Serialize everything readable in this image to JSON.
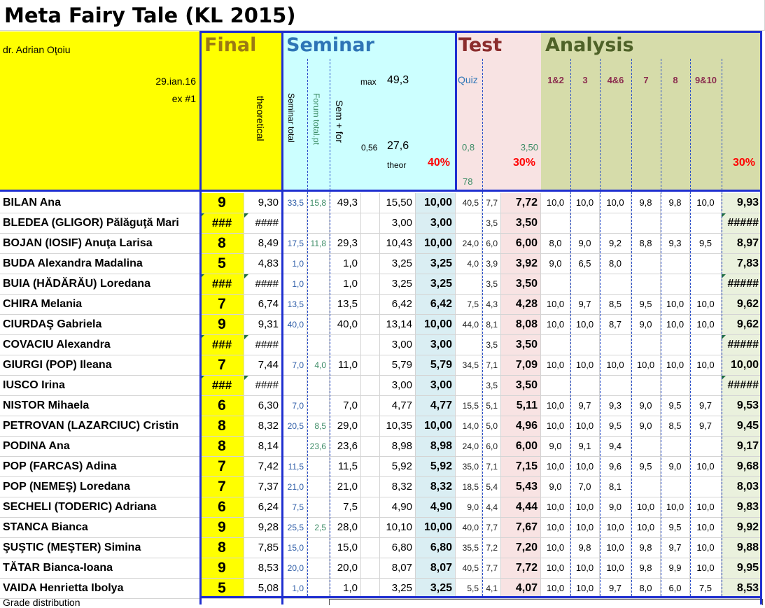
{
  "title": "Meta Fairy Tale (KL 2015)",
  "header": {
    "author": "dr. Adrian Oţoiu",
    "date": "29.ian.16",
    "exercise": "ex #1",
    "final": "Final",
    "seminar": "Seminar",
    "test": "Test",
    "analysis": "Analysis",
    "theoretical": "theoretical",
    "seminar_total": "Seminar total",
    "forum_total": "Forum total.pt",
    "sem_for": "Sem + for",
    "max_label": "max",
    "max_value": "49,3",
    "ratio": "0,56",
    "theor_value": "27,6",
    "theor_label": "theor",
    "seminar_pct": "40%",
    "quiz": "Quiz",
    "quiz_min": "0,8",
    "quiz_max": "3,50",
    "quiz_n": "78",
    "test_pct": "30%",
    "analysis_cols": [
      "1&2",
      "3",
      "4&6",
      "7",
      "8",
      "9&10"
    ],
    "analysis_pct": "30%"
  },
  "rows": [
    {
      "name": "BILAN Ana",
      "grade": "9",
      "theor": "9,30",
      "sem": "33,5",
      "forum": "15,8",
      "semfor": "49,3",
      "scaled": "15,50",
      "sem_final": "10,00",
      "q1": "40,5",
      "q2": "7,7",
      "test": "7,72",
      "a": [
        "10,0",
        "10,0",
        "10,0",
        "9,8",
        "9,8",
        "10,0"
      ],
      "analysis": "9,93"
    },
    {
      "name": "BLEDEA (GLIGOR) Pălăguţă Mari",
      "grade": "###",
      "theor": "####",
      "sem": "",
      "forum": "",
      "semfor": "",
      "scaled": "3,00",
      "sem_final": "3,00",
      "q1": "",
      "q2": "3,5",
      "test": "3,50",
      "a": [
        "",
        "",
        "",
        "",
        "",
        ""
      ],
      "analysis": "#####"
    },
    {
      "name": "BOJAN (IOSIF) Anuţa Larisa",
      "grade": "8",
      "theor": "8,49",
      "sem": "17,5",
      "forum": "11,8",
      "semfor": "29,3",
      "scaled": "10,43",
      "sem_final": "10,00",
      "q1": "24,0",
      "q2": "6,0",
      "test": "6,00",
      "a": [
        "8,0",
        "9,0",
        "9,2",
        "8,8",
        "9,3",
        "9,5"
      ],
      "analysis": "8,97"
    },
    {
      "name": "BUDA Alexandra Madalina",
      "grade": "5",
      "theor": "4,83",
      "sem": "1,0",
      "forum": "",
      "semfor": "1,0",
      "scaled": "3,25",
      "sem_final": "3,25",
      "q1": "4,0",
      "q2": "3,9",
      "test": "3,92",
      "a": [
        "9,0",
        "6,5",
        "8,0",
        "",
        "",
        ""
      ],
      "analysis": "7,83"
    },
    {
      "name": "BUIA (HĂDĂRĂU) Loredana",
      "grade": "###",
      "theor": "####",
      "sem": "1,0",
      "forum": "",
      "semfor": "1,0",
      "scaled": "3,25",
      "sem_final": "3,25",
      "q1": "",
      "q2": "3,5",
      "test": "3,50",
      "a": [
        "",
        "",
        "",
        "",
        "",
        ""
      ],
      "analysis": "#####"
    },
    {
      "name": "CHIRA Melania",
      "grade": "7",
      "theor": "6,74",
      "sem": "13,5",
      "forum": "",
      "semfor": "13,5",
      "scaled": "6,42",
      "sem_final": "6,42",
      "q1": "7,5",
      "q2": "4,3",
      "test": "4,28",
      "a": [
        "10,0",
        "9,7",
        "8,5",
        "9,5",
        "10,0",
        "10,0"
      ],
      "analysis": "9,62"
    },
    {
      "name": "CIURDAŞ Gabriela",
      "grade": "9",
      "theor": "9,31",
      "sem": "40,0",
      "forum": "",
      "semfor": "40,0",
      "scaled": "13,14",
      "sem_final": "10,00",
      "q1": "44,0",
      "q2": "8,1",
      "test": "8,08",
      "a": [
        "10,0",
        "10,0",
        "8,7",
        "9,0",
        "10,0",
        "10,0"
      ],
      "analysis": "9,62"
    },
    {
      "name": "COVACIU Alexandra",
      "grade": "###",
      "theor": "####",
      "sem": "",
      "forum": "",
      "semfor": "",
      "scaled": "3,00",
      "sem_final": "3,00",
      "q1": "",
      "q2": "3,5",
      "test": "3,50",
      "a": [
        "",
        "",
        "",
        "",
        "",
        ""
      ],
      "analysis": "#####"
    },
    {
      "name": "GIURGI (POP) Ileana",
      "grade": "7",
      "theor": "7,44",
      "sem": "7,0",
      "forum": "4,0",
      "semfor": "11,0",
      "scaled": "5,79",
      "sem_final": "5,79",
      "q1": "34,5",
      "q2": "7,1",
      "test": "7,09",
      "a": [
        "10,0",
        "10,0",
        "10,0",
        "10,0",
        "10,0",
        "10,0"
      ],
      "analysis": "10,00"
    },
    {
      "name": "IUSCO Irina",
      "grade": "###",
      "theor": "####",
      "sem": "",
      "forum": "",
      "semfor": "",
      "scaled": "3,00",
      "sem_final": "3,00",
      "q1": "",
      "q2": "3,5",
      "test": "3,50",
      "a": [
        "",
        "",
        "",
        "",
        "",
        ""
      ],
      "analysis": "#####"
    },
    {
      "name": "NISTOR Mihaela",
      "grade": "6",
      "theor": "6,30",
      "sem": "7,0",
      "forum": "",
      "semfor": "7,0",
      "scaled": "4,77",
      "sem_final": "4,77",
      "q1": "15,5",
      "q2": "5,1",
      "test": "5,11",
      "a": [
        "10,0",
        "9,7",
        "9,3",
        "9,0",
        "9,5",
        "9,7"
      ],
      "analysis": "9,53"
    },
    {
      "name": "PETROVAN (LAZARCIUC) Cristin",
      "grade": "8",
      "theor": "8,32",
      "sem": "20,5",
      "forum": "8,5",
      "semfor": "29,0",
      "scaled": "10,35",
      "sem_final": "10,00",
      "q1": "14,0",
      "q2": "5,0",
      "test": "4,96",
      "a": [
        "10,0",
        "10,0",
        "9,5",
        "9,0",
        "8,5",
        "9,7"
      ],
      "analysis": "9,45"
    },
    {
      "name": "PODINA Ana",
      "grade": "8",
      "theor": "8,14",
      "sem": "",
      "forum": "23,6",
      "semfor": "23,6",
      "scaled": "8,98",
      "sem_final": "8,98",
      "q1": "24,0",
      "q2": "6,0",
      "test": "6,00",
      "a": [
        "9,0",
        "9,1",
        "9,4",
        "",
        "",
        ""
      ],
      "analysis": "9,17"
    },
    {
      "name": "POP (FARCAS) Adina",
      "grade": "7",
      "theor": "7,42",
      "sem": "11,5",
      "forum": "",
      "semfor": "11,5",
      "scaled": "5,92",
      "sem_final": "5,92",
      "q1": "35,0",
      "q2": "7,1",
      "test": "7,15",
      "a": [
        "10,0",
        "10,0",
        "9,6",
        "9,5",
        "9,0",
        "10,0"
      ],
      "analysis": "9,68"
    },
    {
      "name": "POP (NEMEŞ) Loredana",
      "grade": "7",
      "theor": "7,37",
      "sem": "21,0",
      "forum": "",
      "semfor": "21,0",
      "scaled": "8,32",
      "sem_final": "8,32",
      "q1": "18,5",
      "q2": "5,4",
      "test": "5,43",
      "a": [
        "9,0",
        "7,0",
        "8,1",
        "",
        "",
        ""
      ],
      "analysis": "8,03"
    },
    {
      "name": "SECHELI (TODERIC) Adriana",
      "grade": "6",
      "theor": "6,24",
      "sem": "7,5",
      "forum": "",
      "semfor": "7,5",
      "scaled": "4,90",
      "sem_final": "4,90",
      "q1": "9,0",
      "q2": "4,4",
      "test": "4,44",
      "a": [
        "10,0",
        "10,0",
        "9,0",
        "10,0",
        "10,0",
        "10,0"
      ],
      "analysis": "9,83"
    },
    {
      "name": "STANCA Bianca",
      "grade": "9",
      "theor": "9,28",
      "sem": "25,5",
      "forum": "2,5",
      "semfor": "28,0",
      "scaled": "10,10",
      "sem_final": "10,00",
      "q1": "40,0",
      "q2": "7,7",
      "test": "7,67",
      "a": [
        "10,0",
        "10,0",
        "10,0",
        "10,0",
        "9,5",
        "10,0"
      ],
      "analysis": "9,92"
    },
    {
      "name": "ŞUŞTIC (MEŞTER) Simina",
      "grade": "8",
      "theor": "7,85",
      "sem": "15,0",
      "forum": "",
      "semfor": "15,0",
      "scaled": "6,80",
      "sem_final": "6,80",
      "q1": "35,5",
      "q2": "7,2",
      "test": "7,20",
      "a": [
        "10,0",
        "9,8",
        "10,0",
        "9,8",
        "9,7",
        "10,0"
      ],
      "analysis": "9,88"
    },
    {
      "name": "TĂTAR Bianca-Ioana",
      "grade": "9",
      "theor": "8,53",
      "sem": "20,0",
      "forum": "",
      "semfor": "20,0",
      "scaled": "8,07",
      "sem_final": "8,07",
      "q1": "40,5",
      "q2": "7,7",
      "test": "7,72",
      "a": [
        "10,0",
        "10,0",
        "10,0",
        "9,8",
        "9,9",
        "10,0"
      ],
      "analysis": "9,95"
    },
    {
      "name": "VAIDA Henrietta Ibolya",
      "grade": "5",
      "theor": "5,08",
      "sem": "1,0",
      "forum": "",
      "semfor": "1,0",
      "scaled": "3,25",
      "sem_final": "3,25",
      "q1": "5,5",
      "q2": "4,1",
      "test": "4,07",
      "a": [
        "10,0",
        "10,0",
        "9,7",
        "8,0",
        "6,0",
        "7,5"
      ],
      "analysis": "8,53"
    }
  ],
  "footer": "Grade distribution",
  "colors": {
    "yellow": "#ffff00",
    "seminar_bg": "#ccffff",
    "test_bg": "#f8e3e3",
    "analysis_bg": "#d6dcaa",
    "border": "#1f2fd0",
    "final_text": "#9b7a14",
    "seminar_text": "#2e75b6",
    "test_text": "#8b2d2d",
    "analysis_text": "#4f6228",
    "pct_red": "#ff0000"
  }
}
